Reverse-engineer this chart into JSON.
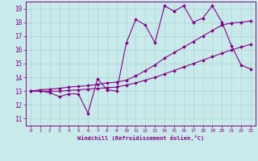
{
  "xlabel": "Windchill (Refroidissement éolien,°C)",
  "xlim": [
    -0.5,
    23.5
  ],
  "ylim": [
    10.5,
    19.5
  ],
  "xticks": [
    0,
    1,
    2,
    3,
    4,
    5,
    6,
    7,
    8,
    9,
    10,
    11,
    12,
    13,
    14,
    15,
    16,
    17,
    18,
    19,
    20,
    21,
    22,
    23
  ],
  "yticks": [
    11,
    12,
    13,
    14,
    15,
    16,
    17,
    18,
    19
  ],
  "background_color": "#c8eaea",
  "grid_color": "#aad4d4",
  "line_color": "#880088",
  "line1_y": [
    13.0,
    13.0,
    12.9,
    12.6,
    12.8,
    12.8,
    11.4,
    13.9,
    13.1,
    13.0,
    16.5,
    18.2,
    17.8,
    16.5,
    19.2,
    18.8,
    19.2,
    18.0,
    18.3,
    19.2,
    18.0,
    16.3,
    14.9,
    14.6
  ],
  "line2_y": [
    13.0,
    13.1,
    13.15,
    13.2,
    13.3,
    13.35,
    13.4,
    13.5,
    13.6,
    13.65,
    13.8,
    14.1,
    14.5,
    14.9,
    15.4,
    15.8,
    16.2,
    16.6,
    17.0,
    17.4,
    17.8,
    17.95,
    18.0,
    18.1
  ],
  "line3_y": [
    13.0,
    13.0,
    13.0,
    13.0,
    13.05,
    13.1,
    13.15,
    13.2,
    13.25,
    13.3,
    13.45,
    13.6,
    13.8,
    14.0,
    14.25,
    14.5,
    14.75,
    15.0,
    15.25,
    15.5,
    15.75,
    16.0,
    16.2,
    16.4
  ],
  "markersize": 2.0,
  "linewidth": 0.8
}
